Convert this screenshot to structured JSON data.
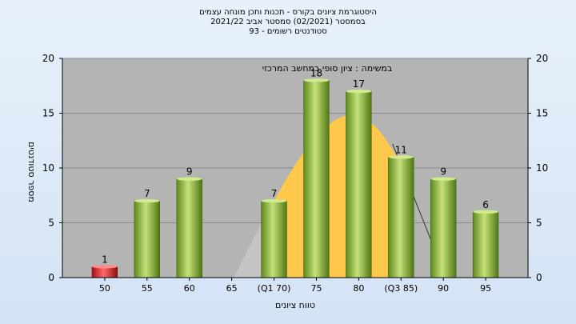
{
  "title_lines": [
    "היסטוגרמת ציונים בקורס - תכנות ותכן מונחה עצמים",
    "בסמסטר (02/2021) סמסטר אביב 2021/22",
    "סטודנטים רשומים - 93"
  ],
  "colors": {
    "bar_green": "#8fb83a",
    "bar_red": "#d42020",
    "curve_fill": "#ffc84a",
    "curve_gray": "#c4c4c4",
    "plot_bg": "#b4b4b4"
  },
  "chart_data": {
    "type": "bar",
    "title": "",
    "annotation": "במשימה : ציון סופי במחשב המרכזי",
    "xlabel": "טווח ציונים",
    "ylabel": "מספר סטודנטים",
    "categories": [
      "50",
      "55",
      "60",
      "65",
      "(Q1 70)",
      "75",
      "80",
      "(Q3 85)",
      "90",
      "95"
    ],
    "values": [
      1,
      7,
      9,
      0,
      7,
      18,
      17,
      11,
      9,
      6
    ],
    "data_labels": [
      "1",
      "7",
      "9",
      "",
      "7",
      "18",
      "17",
      "11",
      "9",
      "6"
    ],
    "highlight_categories": [
      "50"
    ],
    "ylim": [
      0,
      20
    ],
    "y_ticks": [
      "0",
      "5",
      "10",
      "15",
      "20"
    ],
    "secondary_y_ticks": [
      "0",
      "5",
      "10",
      "15",
      "20"
    ],
    "grid": "horizontal"
  }
}
